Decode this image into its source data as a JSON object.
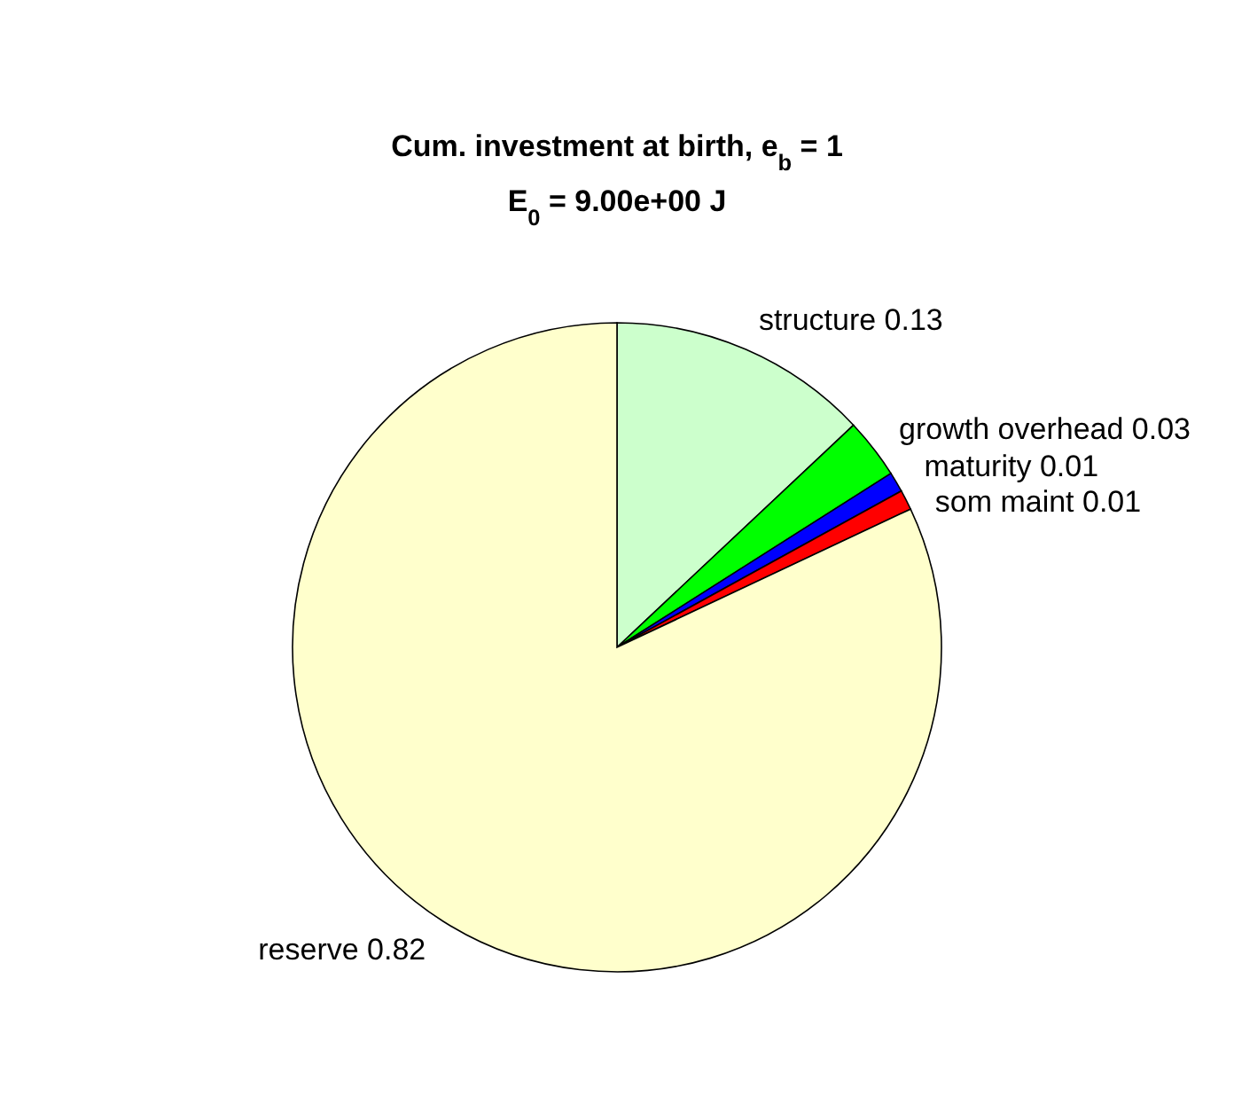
{
  "chart_data": {
    "type": "pie",
    "title": "Cum. investment at birth, e$_{b}$ = 1",
    "subtitle": "E$_{0}$ = 9.00e+00 J",
    "categories": [
      "structure 0.13",
      "growth overhead 0.03",
      "maturity 0.01",
      "som maint 0.01",
      "reserve 0.82"
    ],
    "values": [
      0.13,
      0.03,
      0.01,
      0.01,
      0.82
    ],
    "colors": [
      "#ccffcc",
      "#00ff00",
      "#0000ff",
      "#ff0000",
      "#ffffcc"
    ]
  }
}
